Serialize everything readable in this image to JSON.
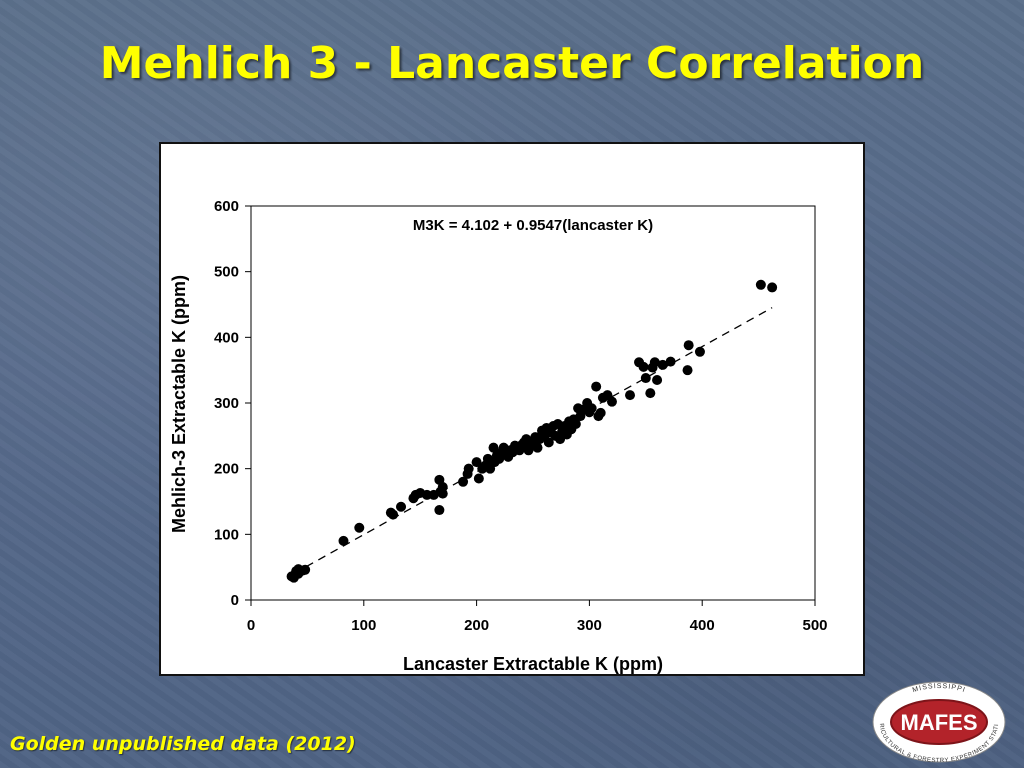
{
  "slide": {
    "title": "Mehlich 3 - Lancaster Correlation",
    "footnote": "Golden unpublished data (2012)",
    "logo": {
      "top_text": "MISSISSIPPI",
      "main_text": "MAFES",
      "bottom_text": "AGRICULTURAL & FORESTRY EXPERIMENT STATION"
    }
  },
  "colors": {
    "title": "#ffff00",
    "background": "#56698a",
    "points": "#000000",
    "logo_red": "#b3232a"
  },
  "chart_data": {
    "type": "scatter",
    "title": "",
    "annotation": "M3K = 4.102 + 0.9547(lancaster K)",
    "xlabel": "Lancaster Extractable K (ppm)",
    "ylabel": "Mehlich-3 Extractable K (ppm)",
    "xlim": [
      0,
      500
    ],
    "ylim": [
      0,
      600
    ],
    "xticks": [
      0,
      100,
      200,
      300,
      400,
      500
    ],
    "yticks": [
      0,
      100,
      200,
      300,
      400,
      500,
      600
    ],
    "grid": false,
    "trendline": {
      "style": "dashed",
      "intercept": 4.102,
      "slope": 0.9547,
      "x_range": [
        38,
        462
      ]
    },
    "series": [
      {
        "points": [
          [
            36,
            36
          ],
          [
            38,
            34
          ],
          [
            40,
            44
          ],
          [
            42,
            47
          ],
          [
            44,
            44
          ],
          [
            46,
            45
          ],
          [
            48,
            46
          ],
          [
            42,
            40
          ],
          [
            82,
            90
          ],
          [
            96,
            110
          ],
          [
            124,
            133
          ],
          [
            126,
            130
          ],
          [
            133,
            142
          ],
          [
            144,
            155
          ],
          [
            146,
            160
          ],
          [
            150,
            163
          ],
          [
            156,
            160
          ],
          [
            162,
            160
          ],
          [
            167,
            137
          ],
          [
            167,
            183
          ],
          [
            168,
            165
          ],
          [
            170,
            172
          ],
          [
            170,
            162
          ],
          [
            188,
            180
          ],
          [
            192,
            192
          ],
          [
            193,
            200
          ],
          [
            200,
            210
          ],
          [
            202,
            185
          ],
          [
            205,
            200
          ],
          [
            208,
            205
          ],
          [
            210,
            215
          ],
          [
            212,
            200
          ],
          [
            215,
            232
          ],
          [
            216,
            210
          ],
          [
            218,
            220
          ],
          [
            220,
            215
          ],
          [
            222,
            225
          ],
          [
            224,
            232
          ],
          [
            226,
            222
          ],
          [
            228,
            218
          ],
          [
            230,
            228
          ],
          [
            232,
            225
          ],
          [
            234,
            235
          ],
          [
            236,
            230
          ],
          [
            238,
            228
          ],
          [
            240,
            236
          ],
          [
            242,
            240
          ],
          [
            244,
            245
          ],
          [
            246,
            228
          ],
          [
            248,
            238
          ],
          [
            250,
            242
          ],
          [
            252,
            248
          ],
          [
            254,
            232
          ],
          [
            256,
            245
          ],
          [
            258,
            258
          ],
          [
            260,
            250
          ],
          [
            262,
            262
          ],
          [
            264,
            240
          ],
          [
            266,
            255
          ],
          [
            268,
            265
          ],
          [
            270,
            250
          ],
          [
            272,
            268
          ],
          [
            274,
            245
          ],
          [
            276,
            258
          ],
          [
            278,
            265
          ],
          [
            280,
            252
          ],
          [
            282,
            272
          ],
          [
            284,
            260
          ],
          [
            286,
            275
          ],
          [
            288,
            268
          ],
          [
            290,
            292
          ],
          [
            292,
            280
          ],
          [
            295,
            290
          ],
          [
            298,
            300
          ],
          [
            300,
            286
          ],
          [
            302,
            292
          ],
          [
            306,
            325
          ],
          [
            308,
            280
          ],
          [
            310,
            285
          ],
          [
            312,
            308
          ],
          [
            316,
            312
          ],
          [
            320,
            302
          ],
          [
            336,
            312
          ],
          [
            344,
            362
          ],
          [
            348,
            355
          ],
          [
            350,
            338
          ],
          [
            354,
            315
          ],
          [
            356,
            354
          ],
          [
            358,
            362
          ],
          [
            360,
            335
          ],
          [
            365,
            358
          ],
          [
            372,
            363
          ],
          [
            387,
            350
          ],
          [
            388,
            388
          ],
          [
            398,
            378
          ],
          [
            452,
            480
          ],
          [
            462,
            476
          ]
        ]
      }
    ]
  }
}
